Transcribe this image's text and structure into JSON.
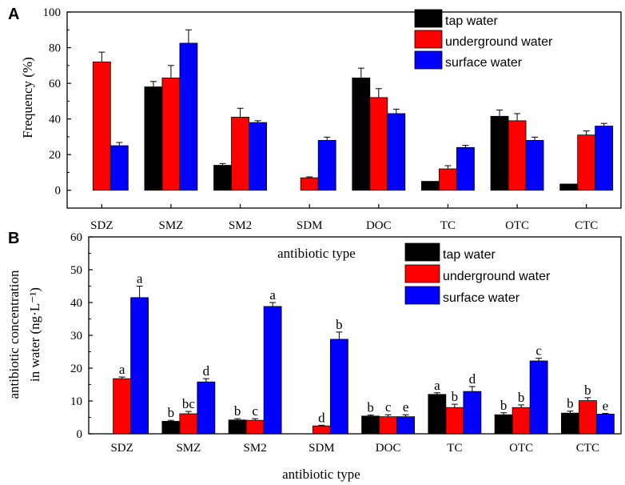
{
  "colors": {
    "tap": "#000000",
    "underground": "#ff0000",
    "surface": "#0000ff"
  },
  "chart_data": [
    {
      "type": "bar",
      "panel": "A",
      "ylabel": "Frequency (%)",
      "xlabel": "",
      "ylim": [
        -10,
        100
      ],
      "yticks": [
        0,
        20,
        40,
        60,
        80,
        100
      ],
      "categories": [
        "SDZ",
        "SMZ",
        "SM2",
        "SDM",
        "DOC",
        "TC",
        "OTC",
        "CTC"
      ],
      "legend": [
        "tap water",
        "underground water",
        "surface water"
      ],
      "legend_position": "top-right",
      "series": [
        {
          "name": "tap water",
          "color_key": "tap",
          "values": [
            0,
            58,
            14,
            0,
            63,
            5,
            41.5,
            3.5
          ],
          "errors": [
            0,
            3,
            1,
            0,
            5.5,
            0,
            3.5,
            0
          ]
        },
        {
          "name": "underground water",
          "color_key": "underground",
          "values": [
            72,
            63,
            41,
            7,
            52,
            12,
            39,
            31
          ],
          "errors": [
            5.5,
            7,
            5,
            0.5,
            5,
            1.8,
            4,
            2.3
          ]
        },
        {
          "name": "surface water",
          "color_key": "surface",
          "values": [
            25,
            82.5,
            38,
            28,
            43,
            24,
            28,
            36
          ],
          "errors": [
            1.8,
            7.5,
            1,
            1.8,
            2.5,
            1.2,
            1.8,
            1.5
          ]
        }
      ]
    },
    {
      "type": "bar",
      "panel": "B",
      "ylabel_line1": "antibiotic concentration",
      "ylabel_line2": "in water (ng·L⁻¹)",
      "xlabel": "antibiotic type",
      "ylim": [
        0,
        60
      ],
      "yticks": [
        0,
        10,
        20,
        30,
        40,
        50,
        60
      ],
      "categories": [
        "SDZ",
        "SMZ",
        "SM2",
        "SDM",
        "DOC",
        "TC",
        "OTC",
        "CTC"
      ],
      "legend": [
        "tap water",
        "underground water",
        "surface water"
      ],
      "legend_position": "top-right",
      "series": [
        {
          "name": "tap water",
          "color_key": "tap",
          "values": [
            0,
            3.8,
            4.2,
            0,
            5.4,
            12,
            5.8,
            6.3
          ],
          "errors": [
            0,
            0.3,
            0.4,
            0,
            0.3,
            0.5,
            0.6,
            0.6
          ],
          "labels": [
            "",
            "b",
            "b",
            "",
            "b",
            "a",
            "b",
            "b"
          ]
        },
        {
          "name": "underground water",
          "color_key": "underground",
          "values": [
            16.8,
            6.1,
            4.1,
            2.4,
            5.2,
            8,
            8,
            10.1
          ],
          "errors": [
            0.5,
            0.7,
            0.5,
            0.2,
            0.6,
            1,
            0.8,
            0.9
          ],
          "labels": [
            "a",
            "bc",
            "c",
            "d",
            "c",
            "b",
            "b",
            "b"
          ]
        },
        {
          "name": "surface water",
          "color_key": "surface",
          "values": [
            41.5,
            15.8,
            38.8,
            28.8,
            5.2,
            12.9,
            22.2,
            6
          ],
          "errors": [
            3.5,
            1,
            1.2,
            2.2,
            0.6,
            1.5,
            0.8,
            0.2
          ],
          "labels": [
            "a",
            "d",
            "a",
            "b",
            "e",
            "d",
            "c",
            "e"
          ]
        }
      ]
    }
  ],
  "stray_label": "antibiotic type"
}
